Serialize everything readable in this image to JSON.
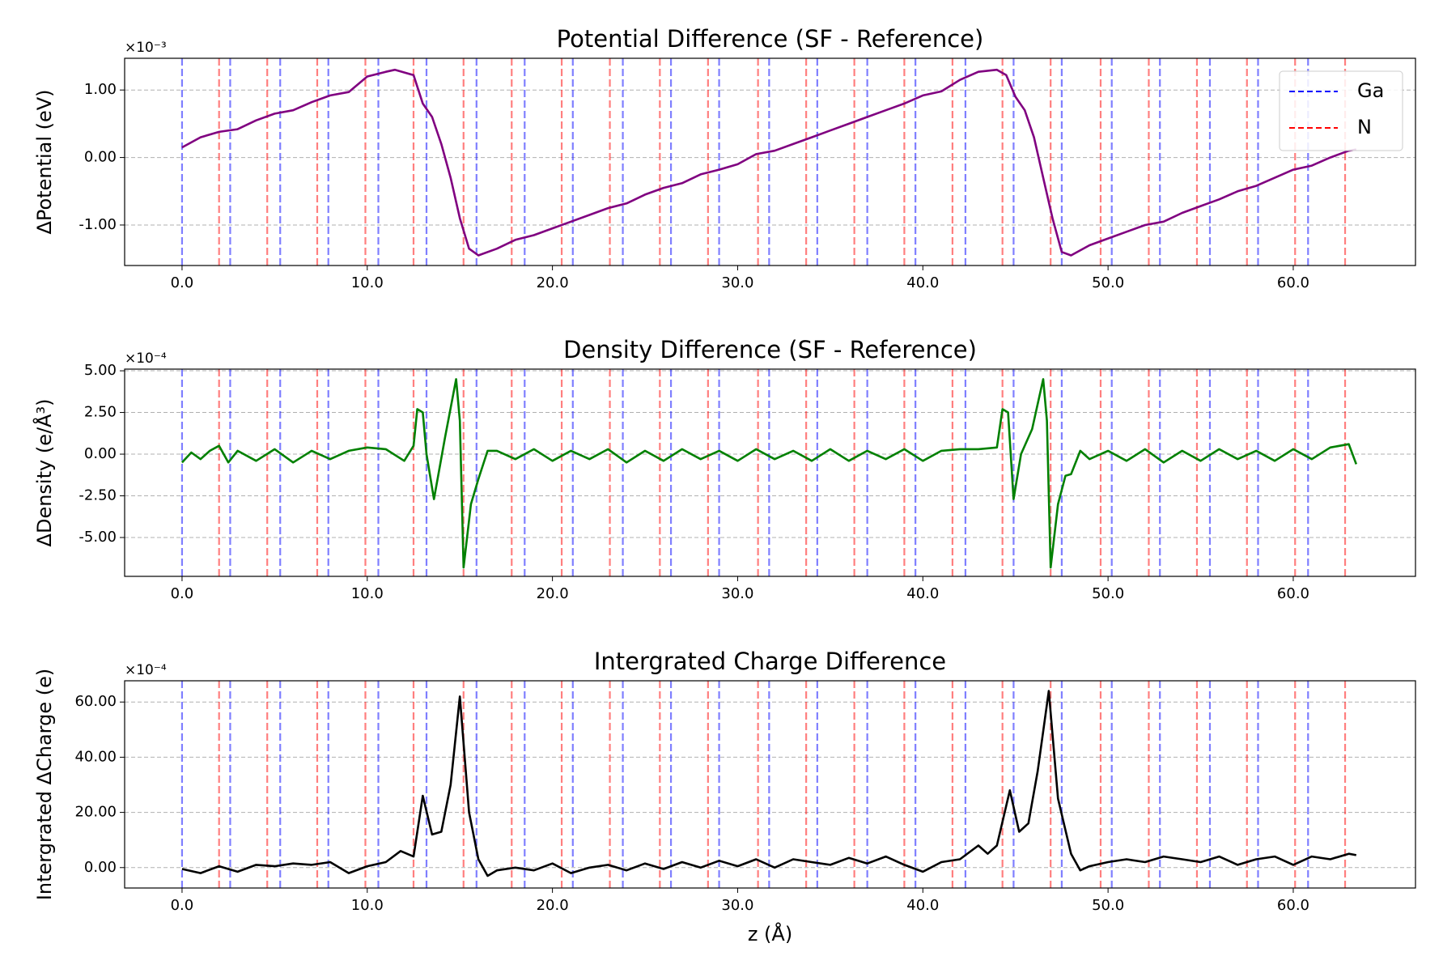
{
  "chart_data": [
    {
      "type": "line",
      "title": "Potential Difference (SF - Reference)",
      "y_label": "ΔPotential (eV)",
      "offset_label": "×10⁻³",
      "xlim": [
        -3.1,
        66.6
      ],
      "ylim": [
        -1.6,
        1.47
      ],
      "xticks": [
        {
          "value": 0,
          "label": "0.0"
        },
        {
          "value": 10,
          "label": "10.0"
        },
        {
          "value": 20,
          "label": "20.0"
        },
        {
          "value": 30,
          "label": "30.0"
        },
        {
          "value": 40,
          "label": "40.0"
        },
        {
          "value": 50,
          "label": "50.0"
        },
        {
          "value": 60,
          "label": "60.0"
        }
      ],
      "yticks": [
        {
          "value": -1,
          "label": "-1.00"
        },
        {
          "value": 0,
          "label": "0.00"
        },
        {
          "value": 1,
          "label": "1.00"
        }
      ],
      "grid": "y",
      "legend": "upper right",
      "vline_series": [
        {
          "name": "Ga",
          "color": "blue",
          "values": [
            0,
            2.6,
            5.3,
            7.9,
            10.6,
            13.2,
            15.9,
            18.5,
            21.1,
            23.8,
            26.4,
            29.0,
            31.7,
            34.3,
            37.0,
            39.6,
            42.3,
            44.9,
            47.5,
            50.2,
            52.8,
            55.5,
            58.1,
            60.8
          ]
        },
        {
          "name": "N",
          "color": "red",
          "values": [
            2.0,
            4.6,
            7.3,
            9.9,
            12.5,
            15.2,
            17.8,
            20.5,
            23.1,
            25.8,
            28.4,
            31.1,
            33.7,
            36.3,
            39.0,
            41.6,
            44.3,
            46.9,
            49.6,
            52.2,
            54.8,
            57.5,
            60.1,
            62.8
          ]
        }
      ],
      "series": [
        {
          "color": "#800080",
          "x": [
            0,
            1,
            2,
            3,
            4,
            5,
            6,
            7,
            8,
            9,
            10,
            11,
            11.5,
            12.5,
            13,
            13.5,
            14,
            14.5,
            15,
            15.5,
            16,
            17,
            18,
            19,
            20,
            21,
            22,
            23,
            24,
            25,
            26,
            27,
            28,
            29,
            30,
            31,
            32,
            33,
            34,
            35,
            36,
            37,
            38,
            39,
            40,
            41,
            42,
            43,
            44,
            44.5,
            45,
            45.5,
            46,
            46.5,
            47,
            47.5,
            48,
            49,
            50,
            51,
            52,
            53,
            54,
            55,
            56,
            57,
            58,
            59,
            60,
            61,
            62,
            63,
            63.4
          ],
          "values": [
            0.15,
            0.3,
            0.38,
            0.42,
            0.55,
            0.65,
            0.7,
            0.82,
            0.92,
            0.97,
            1.2,
            1.27,
            1.3,
            1.22,
            0.8,
            0.6,
            0.2,
            -0.3,
            -0.9,
            -1.35,
            -1.45,
            -1.35,
            -1.22,
            -1.15,
            -1.05,
            -0.95,
            -0.85,
            -0.75,
            -0.68,
            -0.55,
            -0.45,
            -0.38,
            -0.25,
            -0.18,
            -0.1,
            0.05,
            0.1,
            0.2,
            0.3,
            0.4,
            0.5,
            0.6,
            0.7,
            0.8,
            0.92,
            0.98,
            1.15,
            1.27,
            1.3,
            1.22,
            0.9,
            0.7,
            0.3,
            -0.3,
            -0.9,
            -1.4,
            -1.45,
            -1.3,
            -1.2,
            -1.1,
            -1.0,
            -0.95,
            -0.82,
            -0.72,
            -0.62,
            -0.5,
            -0.42,
            -0.3,
            -0.18,
            -0.12,
            0.0,
            0.1,
            0.12
          ]
        }
      ]
    },
    {
      "type": "line",
      "title": "Density Difference (SF - Reference)",
      "y_label": "ΔDensity (e/Å³)",
      "offset_label": "×10⁻⁴",
      "xlim": [
        -3.1,
        66.6
      ],
      "ylim": [
        -7.33,
        5.1
      ],
      "xticks": [
        {
          "value": 0,
          "label": "0.0"
        },
        {
          "value": 10,
          "label": "10.0"
        },
        {
          "value": 20,
          "label": "20.0"
        },
        {
          "value": 30,
          "label": "30.0"
        },
        {
          "value": 40,
          "label": "40.0"
        },
        {
          "value": 50,
          "label": "50.0"
        },
        {
          "value": 60,
          "label": "60.0"
        }
      ],
      "yticks": [
        {
          "value": -5,
          "label": "-5.00"
        },
        {
          "value": -2.5,
          "label": "-2.50"
        },
        {
          "value": 0,
          "label": "0.00"
        },
        {
          "value": 2.5,
          "label": "2.50"
        },
        {
          "value": 5,
          "label": "5.00"
        }
      ],
      "grid": "y",
      "vline_series": [
        {
          "color": "blue",
          "values": [
            0,
            2.6,
            5.3,
            7.9,
            10.6,
            13.2,
            15.9,
            18.5,
            21.1,
            23.8,
            26.4,
            29.0,
            31.7,
            34.3,
            37.0,
            39.6,
            42.3,
            44.9,
            47.5,
            50.2,
            52.8,
            55.5,
            58.1,
            60.8
          ]
        },
        {
          "color": "red",
          "values": [
            2.0,
            4.6,
            7.3,
            9.9,
            12.5,
            15.2,
            17.8,
            20.5,
            23.1,
            25.8,
            28.4,
            31.1,
            33.7,
            36.3,
            39.0,
            41.6,
            44.3,
            46.9,
            49.6,
            52.2,
            54.8,
            57.5,
            60.1,
            62.8
          ]
        }
      ],
      "series": [
        {
          "color": "#008000",
          "x": [
            0,
            0.5,
            1,
            1.5,
            2,
            2.5,
            3,
            4,
            5,
            6,
            7,
            8,
            9,
            10,
            11,
            12,
            12.5,
            12.7,
            13,
            13.2,
            13.6,
            14.2,
            14.8,
            15.0,
            15.2,
            15.6,
            16,
            16.5,
            17,
            18,
            19,
            20,
            21,
            22,
            23,
            24,
            25,
            26,
            27,
            28,
            29,
            30,
            31,
            32,
            33,
            34,
            35,
            36,
            37,
            38,
            39,
            40,
            41,
            42,
            43,
            44,
            44.3,
            44.6,
            44.9,
            45.3,
            45.9,
            46.5,
            46.7,
            46.9,
            47.3,
            47.7,
            48,
            48.5,
            49,
            50,
            51,
            52,
            53,
            54,
            55,
            56,
            57,
            58,
            59,
            60,
            61,
            62,
            63,
            63.4
          ],
          "values": [
            -0.5,
            0.1,
            -0.3,
            0.2,
            0.5,
            -0.5,
            0.2,
            -0.4,
            0.3,
            -0.5,
            0.2,
            -0.3,
            0.2,
            0.4,
            0.3,
            -0.4,
            0.5,
            2.7,
            2.5,
            0,
            -2.7,
            1.0,
            4.5,
            2.0,
            -6.8,
            -3,
            -1.5,
            0.2,
            0.2,
            -0.3,
            0.3,
            -0.4,
            0.2,
            -0.3,
            0.3,
            -0.5,
            0.2,
            -0.4,
            0.3,
            -0.3,
            0.2,
            -0.4,
            0.3,
            -0.3,
            0.2,
            -0.4,
            0.3,
            -0.4,
            0.2,
            -0.3,
            0.3,
            -0.4,
            0.2,
            0.3,
            0.3,
            0.4,
            2.7,
            2.5,
            -2.7,
            0,
            1.5,
            4.5,
            2.0,
            -6.8,
            -3,
            -1.3,
            -1.2,
            0.2,
            -0.3,
            0.2,
            -0.4,
            0.3,
            -0.5,
            0.2,
            -0.4,
            0.3,
            -0.3,
            0.2,
            -0.4,
            0.3,
            -0.3,
            0.4,
            0.6,
            -0.6
          ]
        }
      ]
    },
    {
      "type": "line",
      "title": "Intergrated Charge Difference",
      "y_label": "Intergrated ΔCharge (e)",
      "x_label": "z (Å)",
      "offset_label": "×10⁻⁴",
      "xlim": [
        -3.1,
        66.6
      ],
      "ylim": [
        -7.4,
        67.7
      ],
      "xticks": [
        {
          "value": 0,
          "label": "0.0"
        },
        {
          "value": 10,
          "label": "10.0"
        },
        {
          "value": 20,
          "label": "20.0"
        },
        {
          "value": 30,
          "label": "30.0"
        },
        {
          "value": 40,
          "label": "40.0"
        },
        {
          "value": 50,
          "label": "50.0"
        },
        {
          "value": 60,
          "label": "60.0"
        }
      ],
      "yticks": [
        {
          "value": 0,
          "label": "0.00"
        },
        {
          "value": 20,
          "label": "20.00"
        },
        {
          "value": 40,
          "label": "40.00"
        },
        {
          "value": 60,
          "label": "60.00"
        }
      ],
      "grid": "y",
      "vline_series": [
        {
          "color": "blue",
          "values": [
            0,
            2.6,
            5.3,
            7.9,
            10.6,
            13.2,
            15.9,
            18.5,
            21.1,
            23.8,
            26.4,
            29.0,
            31.7,
            34.3,
            37.0,
            39.6,
            42.3,
            44.9,
            47.5,
            50.2,
            52.8,
            55.5,
            58.1,
            60.8
          ]
        },
        {
          "color": "red",
          "values": [
            2.0,
            4.6,
            7.3,
            9.9,
            12.5,
            15.2,
            17.8,
            20.5,
            23.1,
            25.8,
            28.4,
            31.1,
            33.7,
            36.3,
            39.0,
            41.6,
            44.3,
            46.9,
            49.6,
            52.2,
            54.8,
            57.5,
            60.1,
            62.8
          ]
        }
      ],
      "series": [
        {
          "color": "#000000",
          "x": [
            0,
            1,
            2,
            3,
            4,
            5,
            6,
            7,
            8,
            9,
            10,
            11,
            11.8,
            12.5,
            13,
            13.5,
            14,
            14.5,
            15,
            15.5,
            16,
            16.5,
            17,
            18,
            19,
            20,
            21,
            22,
            23,
            24,
            25,
            26,
            27,
            28,
            29,
            30,
            31,
            32,
            33,
            34,
            35,
            36,
            37,
            38,
            39,
            40,
            41,
            42,
            43,
            43.5,
            44,
            44.7,
            45.2,
            45.7,
            46.2,
            46.8,
            47.3,
            48,
            48.5,
            49,
            50,
            51,
            52,
            53,
            54,
            55,
            56,
            57,
            58,
            59,
            60,
            61,
            62,
            63,
            63.4
          ],
          "values": [
            -0.5,
            -2,
            0.5,
            -1.5,
            1,
            0.5,
            1.5,
            1,
            2,
            -2,
            0.5,
            2,
            6,
            4,
            26,
            12,
            13,
            30,
            62,
            20,
            3,
            -3,
            -1,
            0,
            -1,
            1.5,
            -2,
            0,
            1,
            -1,
            1.5,
            -0.5,
            2,
            0,
            2.5,
            0.5,
            3,
            0,
            3,
            2,
            1,
            3.5,
            1.5,
            4,
            1,
            -1.5,
            2,
            3,
            8,
            5,
            8,
            28,
            13,
            16,
            35,
            64,
            25,
            5,
            -1,
            0.5,
            2,
            3,
            2,
            4,
            3,
            2,
            4,
            1,
            3,
            4,
            1,
            4,
            3,
            5,
            4.5
          ]
        }
      ]
    }
  ]
}
